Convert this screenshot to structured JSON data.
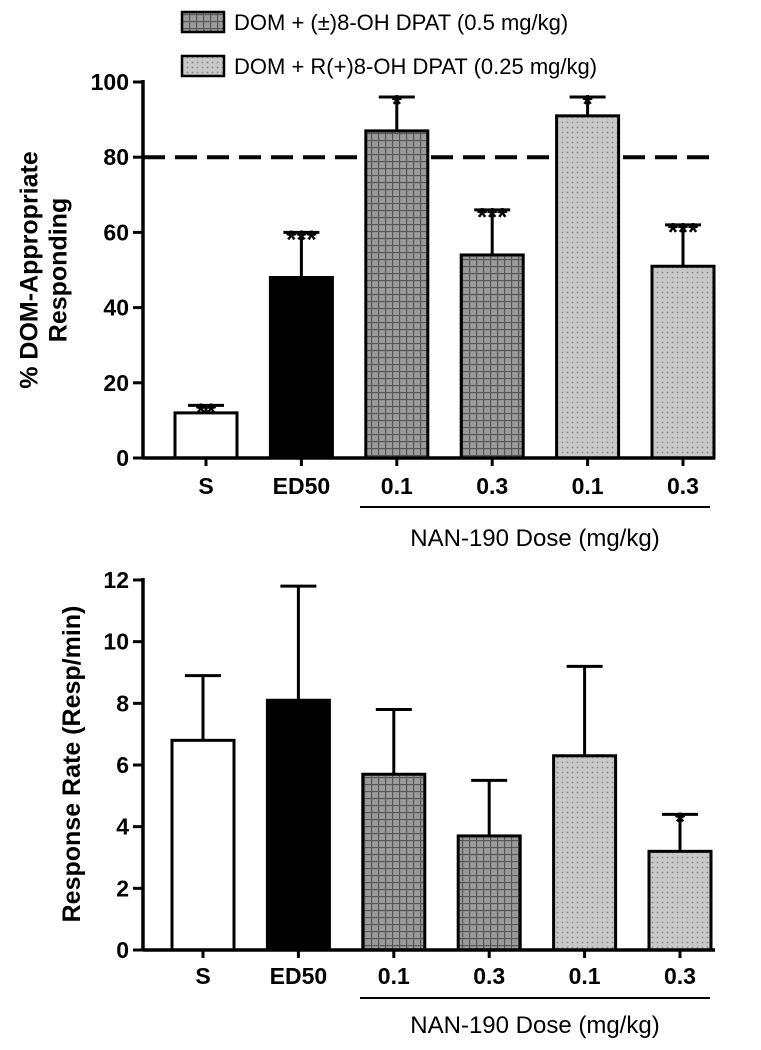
{
  "legend": {
    "placement": "top",
    "entries": [
      {
        "label": "DOM + (±)8-OH DPAT (0.5 mg/kg)",
        "pattern": "grid"
      },
      {
        "label": "DOM + R(+)8-OH DPAT (0.25 mg/kg)",
        "pattern": "dots"
      }
    ]
  },
  "colors": {
    "saline": "#ffffff",
    "ed50": "#000000",
    "racemic": "#8c8c8c",
    "r_isomer": "#c4c4c4",
    "axis": "#000000"
  },
  "chart_data": [
    {
      "type": "bar",
      "categories": [
        "S",
        "ED50",
        "0.1",
        "0.3",
        "0.1",
        "0.3"
      ],
      "category_group": {
        "label": "NAN-190 Dose (mg/kg)",
        "applies_to": [
          2,
          3,
          4,
          5
        ]
      },
      "ylabel_lines": [
        "% DOM-Appropriate",
        "Responding"
      ],
      "ylim": [
        0,
        100
      ],
      "yticks": [
        0,
        20,
        40,
        60,
        80,
        100
      ],
      "reference_line": {
        "y": 80,
        "style": "dashed"
      },
      "grid": false,
      "bars": [
        {
          "category": "S",
          "value": 12,
          "error": 2,
          "sig": "**",
          "fill": "saline",
          "pattern": "none"
        },
        {
          "category": "ED50",
          "value": 48,
          "error": 12,
          "sig": "***",
          "fill": "ed50",
          "pattern": "none"
        },
        {
          "category": "0.1",
          "value": 87,
          "error": 9,
          "sig": "*",
          "fill": "racemic",
          "pattern": "grid"
        },
        {
          "category": "0.3",
          "value": 54,
          "error": 12,
          "sig": "***",
          "fill": "racemic",
          "pattern": "grid"
        },
        {
          "category": "0.1",
          "value": 91,
          "error": 5,
          "sig": "*",
          "fill": "r_isomer",
          "pattern": "dots"
        },
        {
          "category": "0.3",
          "value": 51,
          "error": 11,
          "sig": "***",
          "fill": "r_isomer",
          "pattern": "dots"
        }
      ]
    },
    {
      "type": "bar",
      "categories": [
        "S",
        "ED50",
        "0.1",
        "0.3",
        "0.1",
        "0.3"
      ],
      "category_group": {
        "label": "NAN-190 Dose (mg/kg)",
        "applies_to": [
          2,
          3,
          4,
          5
        ]
      },
      "ylabel_lines": [
        "Response Rate (Resp/min)"
      ],
      "ylim": [
        0,
        12
      ],
      "yticks": [
        0,
        2,
        4,
        6,
        8,
        10,
        12
      ],
      "grid": false,
      "bars": [
        {
          "category": "S",
          "value": 6.8,
          "error": 2.1,
          "sig": "",
          "fill": "saline",
          "pattern": "none"
        },
        {
          "category": "ED50",
          "value": 8.1,
          "error": 3.7,
          "sig": "",
          "fill": "ed50",
          "pattern": "none"
        },
        {
          "category": "0.1",
          "value": 5.7,
          "error": 2.1,
          "sig": "",
          "fill": "racemic",
          "pattern": "grid"
        },
        {
          "category": "0.3",
          "value": 3.7,
          "error": 1.8,
          "sig": "",
          "fill": "racemic",
          "pattern": "grid"
        },
        {
          "category": "0.1",
          "value": 6.3,
          "error": 2.9,
          "sig": "",
          "fill": "r_isomer",
          "pattern": "dots"
        },
        {
          "category": "0.3",
          "value": 3.2,
          "error": 1.2,
          "sig": "*",
          "fill": "r_isomer",
          "pattern": "dots"
        }
      ]
    }
  ]
}
